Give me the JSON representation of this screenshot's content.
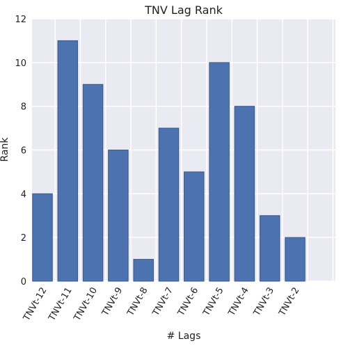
{
  "chart_data": {
    "type": "bar",
    "title": "TNV Lag Rank",
    "xlabel": "# Lags",
    "ylabel": "Rank",
    "categories": [
      "TNVt-12",
      "TNVt-11",
      "TNVt-10",
      "TNVt-9",
      "TNVt-8",
      "TNVt-7",
      "TNVt-6",
      "TNVt-5",
      "TNVt-4",
      "TNVt-3",
      "TNVt-2"
    ],
    "values": [
      4,
      11,
      9,
      6,
      1,
      7,
      5,
      10,
      8,
      3,
      2
    ],
    "ylim": [
      0,
      12
    ],
    "yticks": [
      "0",
      "2",
      "4",
      "6",
      "8",
      "10",
      "12"
    ],
    "grid": true,
    "colors": {
      "bar": "#4c72b0",
      "bar_edge": "#3a5a8c",
      "plot_background": "#eaeaf2",
      "grid": "#ffffff"
    }
  }
}
